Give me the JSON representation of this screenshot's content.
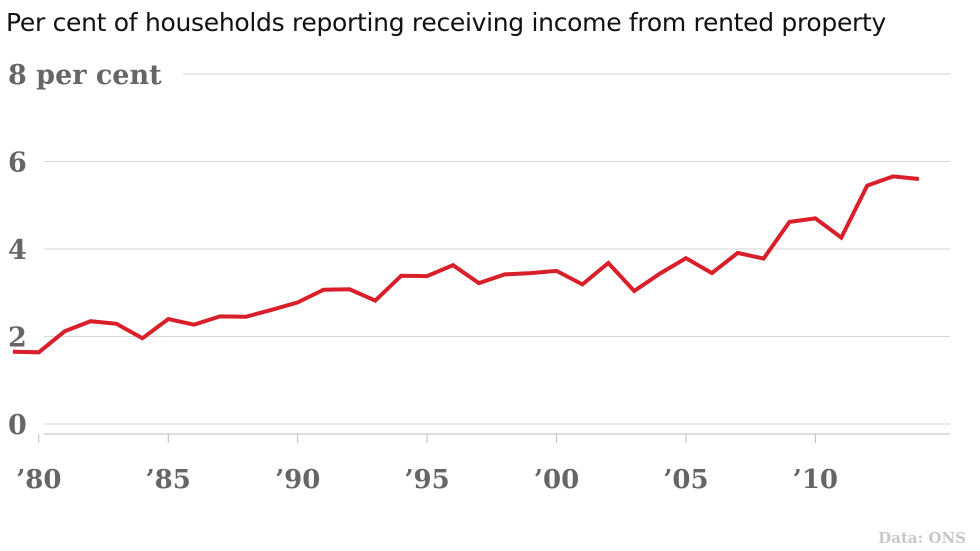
{
  "title": "Per cent of households reporting receiving income from rented property",
  "source": "Data: ONS",
  "colors": {
    "line": "#d81f2a",
    "grid": "#d6d6d6",
    "tick_text": "#666666"
  },
  "chart_data": {
    "type": "line",
    "title": "Per cent of households reporting receiving income from rented property",
    "xlabel": "",
    "ylabel": "",
    "grid": true,
    "xlim": [
      1978.5,
      2015.2
    ],
    "ylim": [
      0,
      8
    ],
    "y_ticks": [
      {
        "value": 8,
        "label": "8 per cent"
      },
      {
        "value": 6,
        "label": "6"
      },
      {
        "value": 4,
        "label": "4"
      },
      {
        "value": 2,
        "label": "2"
      },
      {
        "value": 0,
        "label": "0"
      }
    ],
    "x_ticks": [
      {
        "value": 1980,
        "label": "’80"
      },
      {
        "value": 1985,
        "label": "’85"
      },
      {
        "value": 1990,
        "label": "’90"
      },
      {
        "value": 1995,
        "label": "’95"
      },
      {
        "value": 2000,
        "label": "’00"
      },
      {
        "value": 2005,
        "label": "’05"
      },
      {
        "value": 2010,
        "label": "’10"
      }
    ],
    "series": [
      {
        "x": [
          1979,
          1980,
          1981,
          1982,
          1983,
          1984,
          1985,
          1986,
          1987,
          1988,
          1989,
          1990,
          1991,
          1992,
          1993,
          1994,
          1995,
          1996,
          1997,
          1998,
          1999,
          2000,
          2001,
          2002,
          2003,
          2004,
          2005,
          2006,
          2007,
          2008,
          2009,
          2010,
          2011,
          2012,
          2013,
          2014
        ],
        "values": [
          1.65,
          1.64,
          2.12,
          2.35,
          2.29,
          1.96,
          2.4,
          2.27,
          2.46,
          2.45,
          2.61,
          2.78,
          3.07,
          3.08,
          2.82,
          3.39,
          3.38,
          3.63,
          3.22,
          3.42,
          3.45,
          3.5,
          3.19,
          3.68,
          3.04,
          3.44,
          3.79,
          3.45,
          3.91,
          3.78,
          4.62,
          4.7,
          4.26,
          5.45,
          5.66,
          5.6
        ]
      }
    ]
  }
}
